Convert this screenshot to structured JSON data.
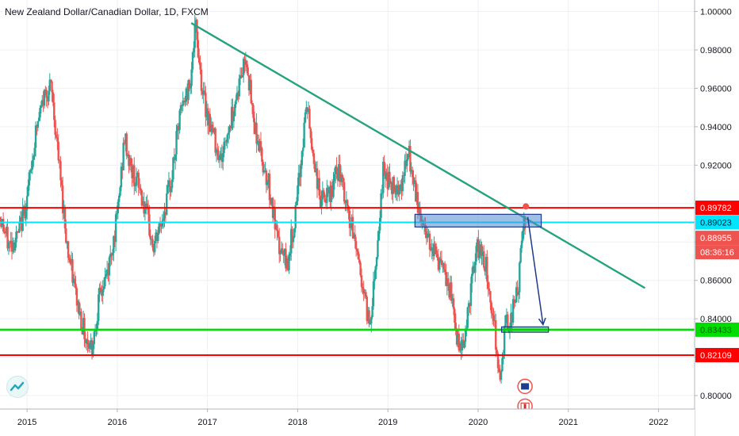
{
  "header": {
    "title": "New Zealand Dollar/Canadian Dollar, 1D, FXCM"
  },
  "colors": {
    "up": "#26a69a",
    "down": "#ef5350",
    "trendline": "#26a27f",
    "resistance": "#ff0000",
    "support": "#00dd00",
    "cyan_line": "#00e5ff",
    "zone_fill": "#6fa8dc",
    "arrow": "#1e3a8a"
  },
  "chart_data": {
    "type": "candlestick",
    "symbol": "NZDCAD",
    "timeframe": "1D",
    "source": "FXCM",
    "xlim": [
      2014.7,
      2022.4
    ],
    "ylim": [
      0.793,
      1.006
    ],
    "x_ticks": [
      "2015",
      "2016",
      "2017",
      "2018",
      "2019",
      "2020",
      "2021",
      "2022"
    ],
    "y_ticks": [
      "0.80000",
      "0.82000",
      "0.84000",
      "0.86000",
      "0.88000",
      "0.90000",
      "0.92000",
      "0.94000",
      "0.96000",
      "0.98000",
      "1.00000"
    ],
    "price_path": [
      [
        2014.7,
        0.893
      ],
      [
        2014.8,
        0.878
      ],
      [
        2014.9,
        0.883
      ],
      [
        2015.0,
        0.903
      ],
      [
        2015.1,
        0.938
      ],
      [
        2015.2,
        0.958
      ],
      [
        2015.27,
        0.96
      ],
      [
        2015.35,
        0.922
      ],
      [
        2015.45,
        0.876
      ],
      [
        2015.55,
        0.85
      ],
      [
        2015.65,
        0.83
      ],
      [
        2015.72,
        0.826
      ],
      [
        2015.8,
        0.85
      ],
      [
        2015.9,
        0.866
      ],
      [
        2016.0,
        0.893
      ],
      [
        2016.08,
        0.934
      ],
      [
        2016.15,
        0.918
      ],
      [
        2016.25,
        0.908
      ],
      [
        2016.35,
        0.888
      ],
      [
        2016.4,
        0.876
      ],
      [
        2016.5,
        0.892
      ],
      [
        2016.6,
        0.913
      ],
      [
        2016.7,
        0.947
      ],
      [
        2016.8,
        0.962
      ],
      [
        2016.87,
        0.992
      ],
      [
        2016.95,
        0.956
      ],
      [
        2017.05,
        0.938
      ],
      [
        2017.15,
        0.923
      ],
      [
        2017.25,
        0.942
      ],
      [
        2017.35,
        0.962
      ],
      [
        2017.43,
        0.978
      ],
      [
        2017.5,
        0.946
      ],
      [
        2017.6,
        0.924
      ],
      [
        2017.68,
        0.91
      ],
      [
        2017.78,
        0.878
      ],
      [
        2017.88,
        0.868
      ],
      [
        2017.98,
        0.895
      ],
      [
        2018.1,
        0.953
      ],
      [
        2018.15,
        0.932
      ],
      [
        2018.25,
        0.902
      ],
      [
        2018.35,
        0.903
      ],
      [
        2018.45,
        0.918
      ],
      [
        2018.55,
        0.896
      ],
      [
        2018.65,
        0.878
      ],
      [
        2018.75,
        0.848
      ],
      [
        2018.8,
        0.837
      ],
      [
        2018.88,
        0.878
      ],
      [
        2018.95,
        0.918
      ],
      [
        2019.05,
        0.908
      ],
      [
        2019.15,
        0.911
      ],
      [
        2019.23,
        0.926
      ],
      [
        2019.3,
        0.905
      ],
      [
        2019.4,
        0.887
      ],
      [
        2019.5,
        0.878
      ],
      [
        2019.6,
        0.865
      ],
      [
        2019.7,
        0.852
      ],
      [
        2019.78,
        0.826
      ],
      [
        2019.85,
        0.83
      ],
      [
        2019.92,
        0.856
      ],
      [
        2020.0,
        0.878
      ],
      [
        2020.08,
        0.869
      ],
      [
        2020.15,
        0.847
      ],
      [
        2020.22,
        0.82
      ],
      [
        2020.24,
        0.803
      ],
      [
        2020.3,
        0.836
      ],
      [
        2020.38,
        0.843
      ],
      [
        2020.45,
        0.858
      ],
      [
        2020.5,
        0.888
      ],
      [
        2020.53,
        0.892
      ]
    ],
    "series": [
      {
        "name": "Resistance",
        "type": "hline",
        "value": 0.89782
      },
      {
        "name": "Cyan level",
        "type": "hline",
        "value": 0.89023
      },
      {
        "name": "Support",
        "type": "hline",
        "value": 0.83433
      },
      {
        "name": "Low level",
        "type": "hline",
        "value": 0.82109
      },
      {
        "name": "Trendline",
        "type": "segment",
        "x": [
          2016.82,
          2021.85
        ],
        "y": [
          0.994,
          0.856
        ]
      },
      {
        "name": "Zone",
        "type": "box",
        "x": [
          2019.3,
          2020.7
        ],
        "y": [
          0.8878,
          0.8944
        ]
      },
      {
        "name": "Target zone",
        "type": "box",
        "x": [
          2020.26,
          2020.78
        ],
        "y": [
          0.833,
          0.8358
        ]
      },
      {
        "name": "Arrow",
        "type": "arrow",
        "x": [
          2020.55,
          2020.72
        ],
        "y": [
          0.893,
          0.837
        ]
      }
    ],
    "price_tags": [
      {
        "label": "0.89782",
        "value": 0.89782,
        "bg": "#ff0000",
        "fg": "#ffffff"
      },
      {
        "label": "0.89023",
        "value": 0.89023,
        "bg": "#00e5ff",
        "fg": "#131722"
      },
      {
        "label": "0.88955",
        "value": 0.88955,
        "bg": "#ef5350",
        "fg": "#ffffff",
        "offset": 18
      },
      {
        "label": "08:36:16",
        "value": 0.88955,
        "bg": "#ef5350",
        "fg": "#ffffff",
        "offset": 36
      },
      {
        "label": "0.83433",
        "value": 0.83433,
        "bg": "#00dd00",
        "fg": "#0a5a0a"
      },
      {
        "label": "0.82109",
        "value": 0.82109,
        "bg": "#ff0000",
        "fg": "#ffffff"
      }
    ]
  }
}
